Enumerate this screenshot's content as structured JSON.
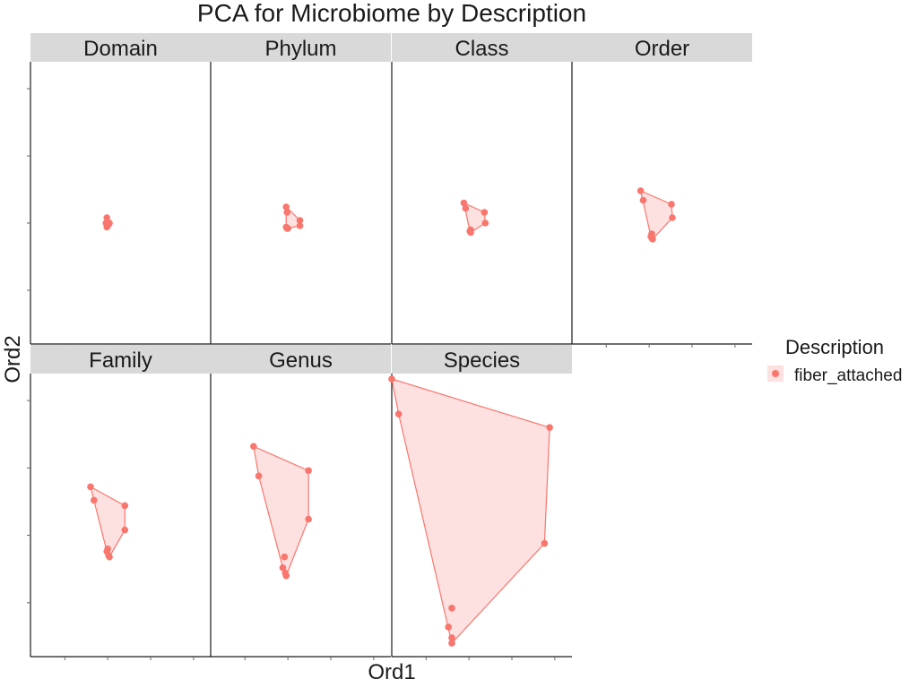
{
  "chart_data": {
    "type": "scatter",
    "title": "PCA for Microbiome by Description",
    "xlabel": "Ord1",
    "ylabel": "Ord2",
    "legend": {
      "title": "Description",
      "placement": "right",
      "entries": [
        {
          "label": "fiber_attached",
          "color": "#F8766D"
        }
      ]
    },
    "xlim": [
      -0.45,
      0.6
    ],
    "ylim": [
      -0.45,
      0.6
    ],
    "hull_fill": true,
    "grid": false,
    "series_color": "#F8766D",
    "hull_fill_color": "#FDE0E0",
    "facets": [
      {
        "name": "Domain",
        "points": [
          [
            -0.005,
            0.02
          ],
          [
            -0.01,
            0.0
          ],
          [
            0.01,
            0.0
          ],
          [
            -0.005,
            -0.015
          ],
          [
            0.0,
            -0.01
          ],
          [
            0.005,
            -0.005
          ]
        ]
      },
      {
        "name": "Phylum",
        "points": [
          [
            -0.01,
            0.06
          ],
          [
            -0.005,
            0.04
          ],
          [
            0.07,
            0.01
          ],
          [
            0.07,
            -0.01
          ],
          [
            -0.01,
            -0.015
          ],
          [
            -0.005,
            -0.02
          ],
          [
            0.0,
            -0.02
          ]
        ]
      },
      {
        "name": "Class",
        "points": [
          [
            -0.03,
            0.075
          ],
          [
            -0.02,
            0.055
          ],
          [
            0.09,
            0.04
          ],
          [
            0.095,
            0.0
          ],
          [
            0.01,
            -0.025
          ],
          [
            0.005,
            -0.03
          ],
          [
            0.01,
            -0.035
          ]
        ]
      },
      {
        "name": "Order",
        "points": [
          [
            -0.05,
            0.12
          ],
          [
            -0.035,
            0.085
          ],
          [
            0.13,
            0.07
          ],
          [
            0.135,
            0.02
          ],
          [
            0.015,
            -0.04
          ],
          [
            0.01,
            -0.05
          ],
          [
            0.02,
            -0.06
          ],
          [
            0.015,
            -0.055
          ]
        ]
      },
      {
        "name": "Family",
        "points": [
          [
            -0.1,
            0.18
          ],
          [
            -0.08,
            0.13
          ],
          [
            0.1,
            0.11
          ],
          [
            0.1,
            0.02
          ],
          [
            0.0,
            -0.05
          ],
          [
            -0.005,
            -0.06
          ],
          [
            0.01,
            -0.08
          ],
          [
            0.005,
            -0.075
          ]
        ]
      },
      {
        "name": "Genus",
        "points": [
          [
            -0.2,
            0.33
          ],
          [
            -0.17,
            0.22
          ],
          [
            0.12,
            0.24
          ],
          [
            0.12,
            0.06
          ],
          [
            -0.02,
            -0.08
          ],
          [
            -0.03,
            -0.12
          ],
          [
            -0.015,
            -0.14
          ],
          [
            -0.01,
            -0.15
          ]
        ]
      },
      {
        "name": "Species",
        "points": [
          [
            -0.45,
            0.58
          ],
          [
            -0.41,
            0.45
          ],
          [
            0.47,
            0.4
          ],
          [
            0.44,
            -0.03
          ],
          [
            -0.1,
            -0.27
          ],
          [
            -0.12,
            -0.34
          ],
          [
            -0.1,
            -0.38
          ],
          [
            -0.1,
            -0.4
          ]
        ]
      }
    ]
  }
}
